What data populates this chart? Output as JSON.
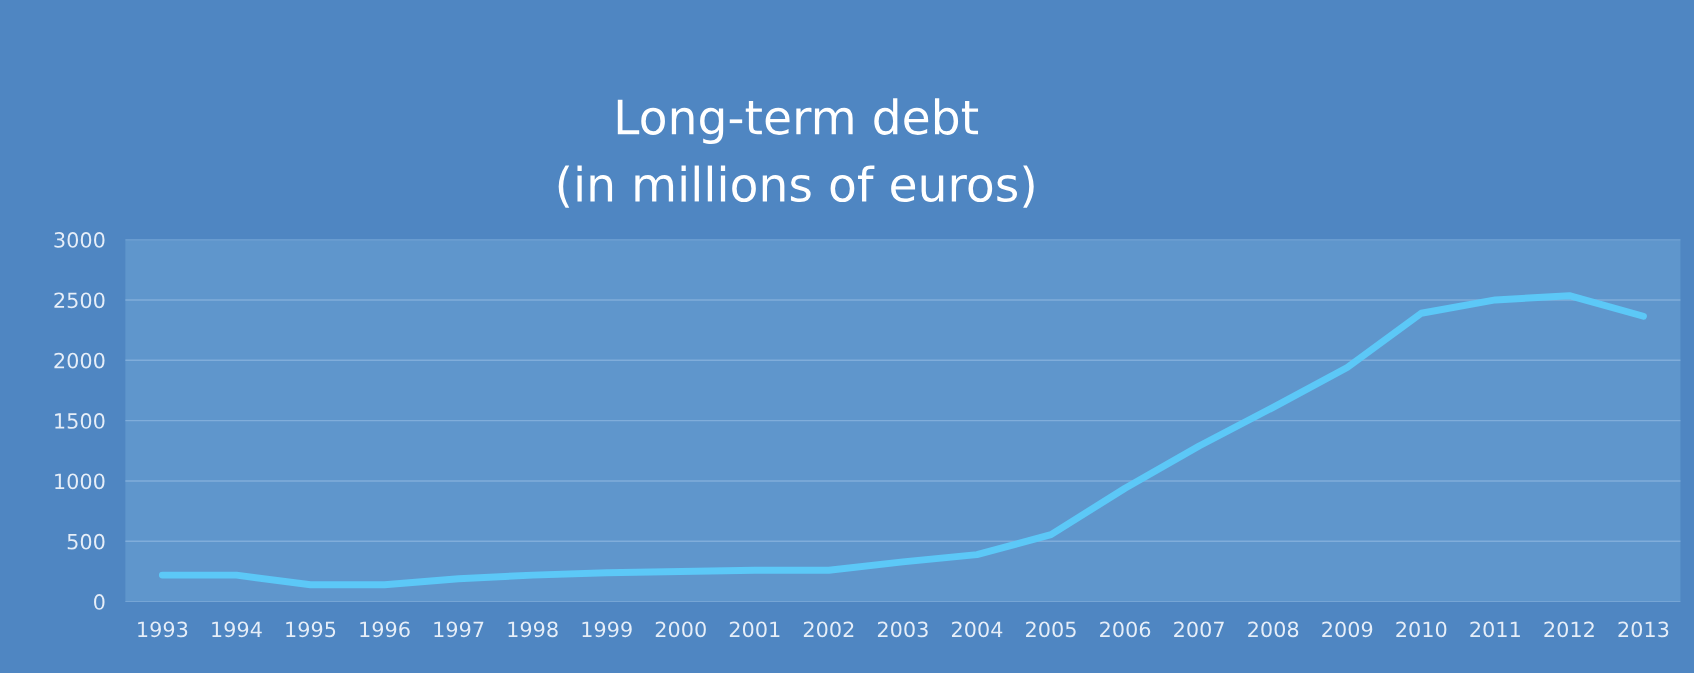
{
  "chart_data": {
    "type": "line",
    "title": "Long-term debt\n(in millions of euros)",
    "categories": [
      "1993",
      "1994",
      "1995",
      "1996",
      "1997",
      "1998",
      "1999",
      "2000",
      "2001",
      "2002",
      "2003",
      "2004",
      "2005",
      "2006",
      "2007",
      "2008",
      "2009",
      "2010",
      "2011",
      "2012",
      "2013"
    ],
    "series": [
      {
        "color": "#5cc8f7",
        "values": [
          220,
          220,
          140,
          140,
          190,
          220,
          240,
          250,
          260,
          260,
          330,
          390,
          555,
          940,
          1290,
          1610,
          1940,
          2390,
          2500,
          2535,
          2365
        ]
      }
    ],
    "ylim": [
      0,
      3000
    ],
    "yticks": [
      0,
      500,
      1000,
      1500,
      2000,
      2500,
      3000
    ],
    "grid": "y",
    "marker": "none",
    "line_style": "solid",
    "legend": false
  }
}
